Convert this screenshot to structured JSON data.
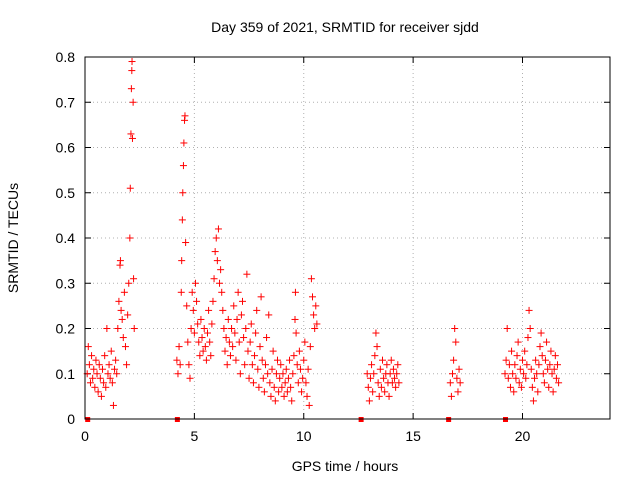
{
  "chart_data": {
    "type": "scatter",
    "title": "Day 359 of 2021, SRMTID for receiver sjdd",
    "xlabel": "GPS time / hours",
    "ylabel": "SRMTID / TECUs",
    "xlim": [
      0,
      24
    ],
    "ylim": [
      0,
      0.8
    ],
    "xticks": [
      0,
      5,
      10,
      15,
      20
    ],
    "yticks": [
      0,
      0.1,
      0.2,
      0.3,
      0.4,
      0.5,
      0.6,
      0.7,
      0.8
    ],
    "xtick_labels": [
      "0",
      "5",
      "10",
      "15",
      "20"
    ],
    "ytick_labels": [
      "0",
      "0.1",
      "0.2",
      "0.3",
      "0.4",
      "0.5",
      "0.6",
      "0.7",
      "0.8"
    ],
    "grid": true,
    "marker": "plus",
    "color": "#ff0000",
    "series": [
      {
        "name": "SRMTID",
        "points": [
          [
            0.1,
            0.1
          ],
          [
            0.15,
            0.16
          ],
          [
            0.2,
            0.12
          ],
          [
            0.25,
            0.08
          ],
          [
            0.3,
            0.14
          ],
          [
            0.35,
            0.09
          ],
          [
            0.4,
            0.11
          ],
          [
            0.45,
            0.07
          ],
          [
            0.5,
            0.13
          ],
          [
            0.55,
            0.1
          ],
          [
            0.6,
            0.06
          ],
          [
            0.65,
            0.12
          ],
          [
            0.7,
            0.09
          ],
          [
            0.75,
            0.05
          ],
          [
            0.8,
            0.11
          ],
          [
            0.85,
            0.08
          ],
          [
            0.9,
            0.14
          ],
          [
            0.95,
            0.07
          ],
          [
            1.0,
            0.2
          ],
          [
            1.05,
            0.1
          ],
          [
            1.1,
            0.12
          ],
          [
            1.15,
            0.09
          ],
          [
            1.2,
            0.15
          ],
          [
            1.25,
            0.08
          ],
          [
            1.3,
            0.03
          ],
          [
            1.35,
            0.11
          ],
          [
            1.4,
            0.13
          ],
          [
            1.45,
            0.1
          ],
          [
            1.5,
            0.2
          ],
          [
            1.55,
            0.26
          ],
          [
            1.6,
            0.34
          ],
          [
            1.62,
            0.35
          ],
          [
            1.65,
            0.24
          ],
          [
            1.7,
            0.22
          ],
          [
            1.75,
            0.18
          ],
          [
            1.8,
            0.28
          ],
          [
            1.85,
            0.16
          ],
          [
            1.9,
            0.12
          ],
          [
            1.95,
            0.23
          ],
          [
            2.0,
            0.3
          ],
          [
            2.05,
            0.4
          ],
          [
            2.07,
            0.51
          ],
          [
            2.1,
            0.63
          ],
          [
            2.12,
            0.73
          ],
          [
            2.14,
            0.77
          ],
          [
            2.15,
            0.79
          ],
          [
            2.17,
            0.62
          ],
          [
            2.2,
            0.7
          ],
          [
            2.22,
            0.31
          ],
          [
            2.25,
            0.2
          ],
          [
            4.2,
            0.13
          ],
          [
            4.25,
            0.1
          ],
          [
            4.3,
            0.16
          ],
          [
            4.35,
            0.12
          ],
          [
            4.4,
            0.28
          ],
          [
            4.42,
            0.35
          ],
          [
            4.45,
            0.44
          ],
          [
            4.47,
            0.5
          ],
          [
            4.5,
            0.56
          ],
          [
            4.52,
            0.61
          ],
          [
            4.55,
            0.66
          ],
          [
            4.57,
            0.67
          ],
          [
            4.6,
            0.39
          ],
          [
            4.65,
            0.25
          ],
          [
            4.7,
            0.17
          ],
          [
            4.75,
            0.12
          ],
          [
            4.8,
            0.09
          ],
          [
            4.85,
            0.2
          ],
          [
            4.9,
            0.28
          ],
          [
            4.95,
            0.24
          ],
          [
            5.0,
            0.19
          ],
          [
            5.05,
            0.3
          ],
          [
            5.1,
            0.26
          ],
          [
            5.15,
            0.21
          ],
          [
            5.2,
            0.17
          ],
          [
            5.25,
            0.14
          ],
          [
            5.3,
            0.22
          ],
          [
            5.35,
            0.18
          ],
          [
            5.4,
            0.15
          ],
          [
            5.45,
            0.2
          ],
          [
            5.5,
            0.16
          ],
          [
            5.55,
            0.13
          ],
          [
            5.6,
            0.19
          ],
          [
            5.65,
            0.24
          ],
          [
            5.7,
            0.17
          ],
          [
            5.75,
            0.14
          ],
          [
            5.8,
            0.21
          ],
          [
            5.85,
            0.26
          ],
          [
            5.9,
            0.31
          ],
          [
            5.95,
            0.37
          ],
          [
            6.0,
            0.4
          ],
          [
            6.05,
            0.35
          ],
          [
            6.1,
            0.42
          ],
          [
            6.15,
            0.3
          ],
          [
            6.2,
            0.33
          ],
          [
            6.25,
            0.28
          ],
          [
            6.3,
            0.24
          ],
          [
            6.35,
            0.2
          ],
          [
            6.4,
            0.15
          ],
          [
            6.45,
            0.18
          ],
          [
            6.5,
            0.12
          ],
          [
            6.55,
            0.22
          ],
          [
            6.6,
            0.17
          ],
          [
            6.65,
            0.14
          ],
          [
            6.7,
            0.2
          ],
          [
            6.75,
            0.16
          ],
          [
            6.8,
            0.25
          ],
          [
            6.85,
            0.19
          ],
          [
            6.9,
            0.13
          ],
          [
            6.95,
            0.22
          ],
          [
            7.0,
            0.28
          ],
          [
            7.05,
            0.17
          ],
          [
            7.1,
            0.1
          ],
          [
            7.15,
            0.23
          ],
          [
            7.2,
            0.26
          ],
          [
            7.25,
            0.18
          ],
          [
            7.3,
            0.12
          ],
          [
            7.35,
            0.2
          ],
          [
            7.4,
            0.32
          ],
          [
            7.45,
            0.15
          ],
          [
            7.5,
            0.09
          ],
          [
            7.55,
            0.17
          ],
          [
            7.6,
            0.21
          ],
          [
            7.65,
            0.12
          ],
          [
            7.7,
            0.08
          ],
          [
            7.75,
            0.14
          ],
          [
            7.8,
            0.19
          ],
          [
            7.85,
            0.24
          ],
          [
            7.9,
            0.11
          ],
          [
            7.95,
            0.07
          ],
          [
            8.0,
            0.16
          ],
          [
            8.05,
            0.27
          ],
          [
            8.1,
            0.13
          ],
          [
            8.15,
            0.09
          ],
          [
            8.2,
            0.06
          ],
          [
            8.25,
            0.12
          ],
          [
            8.3,
            0.18
          ],
          [
            8.35,
            0.1
          ],
          [
            8.4,
            0.23
          ],
          [
            8.45,
            0.08
          ],
          [
            8.5,
            0.05
          ],
          [
            8.55,
            0.11
          ],
          [
            8.6,
            0.15
          ],
          [
            8.65,
            0.07
          ],
          [
            8.7,
            0.04
          ],
          [
            8.75,
            0.1
          ],
          [
            8.8,
            0.13
          ],
          [
            8.85,
            0.06
          ],
          [
            8.9,
            0.09
          ],
          [
            8.95,
            0.12
          ],
          [
            9.0,
            0.07
          ],
          [
            9.05,
            0.1
          ],
          [
            9.1,
            0.05
          ],
          [
            9.15,
            0.08
          ],
          [
            9.2,
            0.11
          ],
          [
            9.25,
            0.06
          ],
          [
            9.3,
            0.09
          ],
          [
            9.35,
            0.13
          ],
          [
            9.4,
            0.07
          ],
          [
            9.45,
            0.04
          ],
          [
            9.5,
            0.1
          ],
          [
            9.55,
            0.14
          ],
          [
            9.6,
            0.22
          ],
          [
            9.62,
            0.28
          ],
          [
            9.65,
            0.19
          ],
          [
            9.7,
            0.12
          ],
          [
            9.75,
            0.08
          ],
          [
            9.8,
            0.15
          ],
          [
            9.85,
            0.11
          ],
          [
            9.9,
            0.06
          ],
          [
            9.95,
            0.09
          ],
          [
            10.0,
            0.13
          ],
          [
            10.05,
            0.17
          ],
          [
            10.1,
            0.08
          ],
          [
            10.15,
            0.05
          ],
          [
            10.2,
            0.11
          ],
          [
            10.25,
            0.03
          ],
          [
            10.3,
            0.16
          ],
          [
            10.35,
            0.31
          ],
          [
            10.4,
            0.27
          ],
          [
            10.45,
            0.23
          ],
          [
            10.5,
            0.2
          ],
          [
            10.55,
            0.25
          ],
          [
            10.6,
            0.21
          ],
          [
            12.9,
            0.1
          ],
          [
            12.95,
            0.07
          ],
          [
            13.0,
            0.04
          ],
          [
            13.05,
            0.09
          ],
          [
            13.1,
            0.12
          ],
          [
            13.15,
            0.06
          ],
          [
            13.2,
            0.1
          ],
          [
            13.25,
            0.14
          ],
          [
            13.3,
            0.19
          ],
          [
            13.35,
            0.16
          ],
          [
            13.4,
            0.08
          ],
          [
            13.45,
            0.05
          ],
          [
            13.5,
            0.11
          ],
          [
            13.55,
            0.07
          ],
          [
            13.6,
            0.13
          ],
          [
            13.65,
            0.09
          ],
          [
            13.7,
            0.06
          ],
          [
            13.75,
            0.1
          ],
          [
            13.8,
            0.12
          ],
          [
            13.85,
            0.08
          ],
          [
            13.9,
            0.05
          ],
          [
            13.95,
            0.1
          ],
          [
            14.0,
            0.13
          ],
          [
            14.05,
            0.08
          ],
          [
            14.1,
            0.11
          ],
          [
            14.15,
            0.09
          ],
          [
            14.2,
            0.07
          ],
          [
            14.25,
            0.1
          ],
          [
            14.3,
            0.12
          ],
          [
            14.35,
            0.08
          ],
          [
            16.7,
            0.08
          ],
          [
            16.75,
            0.05
          ],
          [
            16.8,
            0.1
          ],
          [
            16.85,
            0.13
          ],
          [
            16.9,
            0.2
          ],
          [
            16.95,
            0.17
          ],
          [
            17.0,
            0.09
          ],
          [
            17.05,
            0.06
          ],
          [
            17.1,
            0.11
          ],
          [
            17.15,
            0.08
          ],
          [
            19.2,
            0.1
          ],
          [
            19.25,
            0.13
          ],
          [
            19.3,
            0.2
          ],
          [
            19.35,
            0.09
          ],
          [
            19.4,
            0.12
          ],
          [
            19.45,
            0.07
          ],
          [
            19.5,
            0.15
          ],
          [
            19.55,
            0.1
          ],
          [
            19.6,
            0.06
          ],
          [
            19.65,
            0.12
          ],
          [
            19.7,
            0.09
          ],
          [
            19.75,
            0.14
          ],
          [
            19.8,
            0.17
          ],
          [
            19.85,
            0.08
          ],
          [
            19.9,
            0.11
          ],
          [
            19.95,
            0.07
          ],
          [
            20.0,
            0.13
          ],
          [
            20.05,
            0.1
          ],
          [
            20.1,
            0.15
          ],
          [
            20.15,
            0.09
          ],
          [
            20.2,
            0.12
          ],
          [
            20.25,
            0.18
          ],
          [
            20.3,
            0.24
          ],
          [
            20.35,
            0.2
          ],
          [
            20.4,
            0.11
          ],
          [
            20.45,
            0.07
          ],
          [
            20.5,
            0.04
          ],
          [
            20.55,
            0.09
          ],
          [
            20.6,
            0.13
          ],
          [
            20.65,
            0.1
          ],
          [
            20.7,
            0.06
          ],
          [
            20.75,
            0.12
          ],
          [
            20.8,
            0.16
          ],
          [
            20.85,
            0.19
          ],
          [
            20.9,
            0.14
          ],
          [
            20.95,
            0.1
          ],
          [
            21.0,
            0.08
          ],
          [
            21.05,
            0.13
          ],
          [
            21.1,
            0.17
          ],
          [
            21.15,
            0.11
          ],
          [
            21.2,
            0.07
          ],
          [
            21.25,
            0.12
          ],
          [
            21.3,
            0.15
          ],
          [
            21.35,
            0.1
          ],
          [
            21.4,
            0.06
          ],
          [
            21.45,
            0.11
          ],
          [
            21.5,
            0.14
          ],
          [
            21.55,
            0.09
          ],
          [
            21.6,
            0.12
          ],
          [
            21.65,
            0.08
          ]
        ]
      }
    ],
    "zero_markers_x": [
      0.1,
      4.2,
      12.6,
      16.6,
      19.2
    ]
  }
}
